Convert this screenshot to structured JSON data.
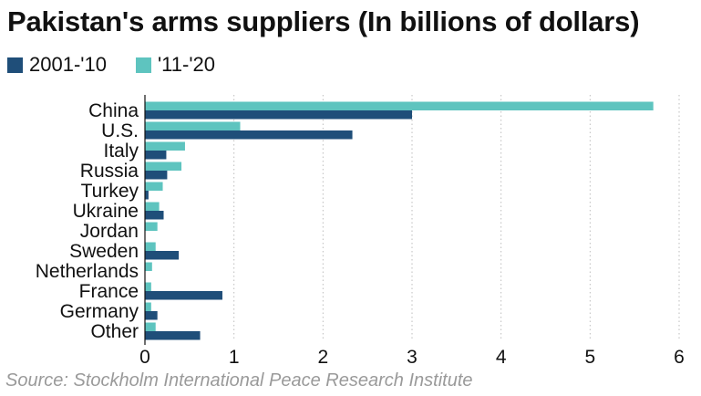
{
  "chart_data": {
    "type": "bar",
    "orientation": "horizontal",
    "title": "Pakistan's arms suppliers (In billions of dollars)",
    "categories": [
      "China",
      "U.S.",
      "Italy",
      "Russia",
      "Turkey",
      "Ukraine",
      "Jordan",
      "Sweden",
      "Netherlands",
      "France",
      "Germany",
      "Other"
    ],
    "series": [
      {
        "name": "2001-'10",
        "color": "#1f4e79",
        "values": [
          3.0,
          2.33,
          0.24,
          0.25,
          0.04,
          0.21,
          0.0,
          0.38,
          0.0,
          0.87,
          0.14,
          0.62
        ]
      },
      {
        "name": "'11-'20",
        "color": "#5ec4bf",
        "values": [
          5.71,
          1.07,
          0.45,
          0.41,
          0.2,
          0.16,
          0.14,
          0.12,
          0.08,
          0.07,
          0.07,
          0.12
        ]
      }
    ],
    "xlim": [
      0,
      6
    ],
    "xticks": [
      "0",
      "1",
      "2",
      "3",
      "4",
      "5",
      "6"
    ],
    "grid": "vertical-dotted",
    "legend_position": "top-left",
    "source": "Source: Stockholm International Peace Research Institute"
  }
}
